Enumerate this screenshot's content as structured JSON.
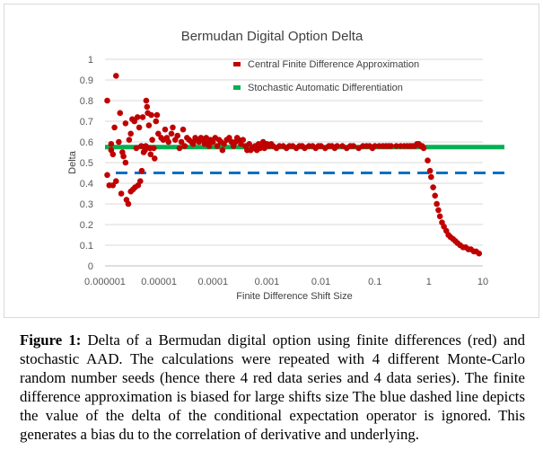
{
  "chart_data": {
    "type": "scatter",
    "title": "Bermudan Digital Option Delta",
    "xlabel": "Finite Difference Shift Size",
    "ylabel": "Delta",
    "x_scale": "log",
    "xlim": [
      1e-06,
      10
    ],
    "ylim": [
      0,
      1
    ],
    "x_tick_labels": [
      "0.000001",
      "0.00001",
      "0.0001",
      "0.001",
      "0.01",
      "0.1",
      "1",
      "10"
    ],
    "y_tick_labels": [
      "0",
      "0.1",
      "0.2",
      "0.3",
      "0.4",
      "0.5",
      "0.6",
      "0.7",
      "0.8",
      "0.9",
      "1"
    ],
    "grid": "horizontal",
    "legend": "top-right",
    "series": [
      {
        "name": "Central Finite Difference Approximation",
        "kind": "scatter",
        "color": "#c00000",
        "points": [
          [
            1.1e-06,
            0.8
          ],
          [
            1.1e-06,
            0.44
          ],
          [
            1.2e-06,
            0.39
          ],
          [
            1.3e-06,
            0.59
          ],
          [
            1.3e-06,
            0.56
          ],
          [
            1.4e-06,
            0.54
          ],
          [
            1.4e-06,
            0.39
          ],
          [
            1.5e-06,
            0.67
          ],
          [
            1.6e-06,
            0.92
          ],
          [
            1.6e-06,
            0.41
          ],
          [
            1.8e-06,
            0.6
          ],
          [
            1.9e-06,
            0.74
          ],
          [
            2e-06,
            0.35
          ],
          [
            2.1e-06,
            0.55
          ],
          [
            2.2e-06,
            0.53
          ],
          [
            2.4e-06,
            0.69
          ],
          [
            2.4e-06,
            0.5
          ],
          [
            2.5e-06,
            0.32
          ],
          [
            2.7e-06,
            0.3
          ],
          [
            2.8e-06,
            0.61
          ],
          [
            3e-06,
            0.64
          ],
          [
            3e-06,
            0.36
          ],
          [
            3.2e-06,
            0.71
          ],
          [
            3.3e-06,
            0.37
          ],
          [
            3.5e-06,
            0.7
          ],
          [
            3.6e-06,
            0.38
          ],
          [
            3.8e-06,
            0.57
          ],
          [
            4e-06,
            0.72
          ],
          [
            4.1e-06,
            0.39
          ],
          [
            4.3e-06,
            0.67
          ],
          [
            4.5e-06,
            0.41
          ],
          [
            4.7e-06,
            0.58
          ],
          [
            4.8e-06,
            0.46
          ],
          [
            5e-06,
            0.72
          ],
          [
            5.2e-06,
            0.55
          ],
          [
            5.5e-06,
            0.56
          ],
          [
            5.7e-06,
            0.58
          ],
          [
            5.8e-06,
            0.8
          ],
          [
            6e-06,
            0.77
          ],
          [
            6.2e-06,
            0.74
          ],
          [
            6.5e-06,
            0.68
          ],
          [
            6.8e-06,
            0.57
          ],
          [
            7e-06,
            0.54
          ],
          [
            7.2e-06,
            0.73
          ],
          [
            7.5e-06,
            0.61
          ],
          [
            8e-06,
            0.57
          ],
          [
            8.3e-06,
            0.52
          ],
          [
            8.8e-06,
            0.7
          ],
          [
            9.2e-06,
            0.73
          ],
          [
            9.7e-06,
            0.64
          ],
          [
            1.1e-05,
            0.62
          ],
          [
            1.2e-05,
            0.61
          ],
          [
            1.3e-05,
            0.66
          ],
          [
            1.4e-05,
            0.62
          ],
          [
            1.5e-05,
            0.6
          ],
          [
            1.7e-05,
            0.64
          ],
          [
            1.8e-05,
            0.67
          ],
          [
            2e-05,
            0.61
          ],
          [
            2.2e-05,
            0.63
          ],
          [
            2.4e-05,
            0.57
          ],
          [
            2.6e-05,
            0.6
          ],
          [
            2.8e-05,
            0.66
          ],
          [
            3e-05,
            0.58
          ],
          [
            3.3e-05,
            0.62
          ],
          [
            3.6e-05,
            0.61
          ],
          [
            4e-05,
            0.6
          ],
          [
            4.3e-05,
            0.59
          ],
          [
            4.7e-05,
            0.62
          ],
          [
            5e-05,
            0.61
          ],
          [
            5.5e-05,
            0.6
          ],
          [
            6e-05,
            0.62
          ],
          [
            6.5e-05,
            0.61
          ],
          [
            7e-05,
            0.59
          ],
          [
            7.5e-05,
            0.62
          ],
          [
            8e-05,
            0.6
          ],
          [
            8.5e-05,
            0.58
          ],
          [
            9e-05,
            0.61
          ],
          [
            0.0001,
            0.6
          ],
          [
            0.00011,
            0.62
          ],
          [
            0.00012,
            0.58
          ],
          [
            0.00013,
            0.61
          ],
          [
            0.00014,
            0.6
          ],
          [
            0.00015,
            0.56
          ],
          [
            0.00016,
            0.59
          ],
          [
            0.00018,
            0.61
          ],
          [
            0.0002,
            0.62
          ],
          [
            0.00022,
            0.6
          ],
          [
            0.00024,
            0.58
          ],
          [
            0.00026,
            0.6
          ],
          [
            0.00028,
            0.62
          ],
          [
            0.0003,
            0.61
          ],
          [
            0.00033,
            0.59
          ],
          [
            0.00036,
            0.61
          ],
          [
            0.0004,
            0.58
          ],
          [
            0.00043,
            0.56
          ],
          [
            0.00047,
            0.59
          ],
          [
            0.0005,
            0.56
          ],
          [
            0.00055,
            0.57
          ],
          [
            0.0006,
            0.58
          ],
          [
            0.00065,
            0.56
          ],
          [
            0.0007,
            0.59
          ],
          [
            0.00075,
            0.57
          ],
          [
            0.0008,
            0.58
          ],
          [
            0.00085,
            0.6
          ],
          [
            0.0009,
            0.57
          ],
          [
            0.001,
            0.59
          ],
          [
            0.0011,
            0.58
          ],
          [
            0.0012,
            0.59
          ],
          [
            0.0013,
            0.58
          ],
          [
            0.0015,
            0.57
          ],
          [
            0.0017,
            0.58
          ],
          [
            0.002,
            0.58
          ],
          [
            0.0023,
            0.57
          ],
          [
            0.0026,
            0.58
          ],
          [
            0.003,
            0.58
          ],
          [
            0.0035,
            0.57
          ],
          [
            0.004,
            0.58
          ],
          [
            0.0045,
            0.58
          ],
          [
            0.005,
            0.57
          ],
          [
            0.006,
            0.58
          ],
          [
            0.007,
            0.58
          ],
          [
            0.008,
            0.57
          ],
          [
            0.009,
            0.58
          ],
          [
            0.01,
            0.58
          ],
          [
            0.012,
            0.57
          ],
          [
            0.014,
            0.58
          ],
          [
            0.016,
            0.58
          ],
          [
            0.018,
            0.57
          ],
          [
            0.02,
            0.58
          ],
          [
            0.025,
            0.58
          ],
          [
            0.03,
            0.57
          ],
          [
            0.035,
            0.58
          ],
          [
            0.04,
            0.58
          ],
          [
            0.05,
            0.57
          ],
          [
            0.06,
            0.58
          ],
          [
            0.07,
            0.58
          ],
          [
            0.08,
            0.58
          ],
          [
            0.09,
            0.57
          ],
          [
            0.1,
            0.58
          ],
          [
            0.12,
            0.58
          ],
          [
            0.14,
            0.58
          ],
          [
            0.16,
            0.58
          ],
          [
            0.18,
            0.58
          ],
          [
            0.2,
            0.58
          ],
          [
            0.25,
            0.58
          ],
          [
            0.3,
            0.58
          ],
          [
            0.35,
            0.58
          ],
          [
            0.4,
            0.58
          ],
          [
            0.45,
            0.58
          ],
          [
            0.5,
            0.58
          ],
          [
            0.55,
            0.58
          ],
          [
            0.6,
            0.59
          ],
          [
            0.65,
            0.59
          ],
          [
            0.7,
            0.58
          ],
          [
            0.75,
            0.58
          ],
          [
            0.8,
            0.57
          ],
          [
            0.95,
            0.51
          ],
          [
            1.05,
            0.46
          ],
          [
            1.1,
            0.43
          ],
          [
            1.2,
            0.38
          ],
          [
            1.3,
            0.34
          ],
          [
            1.4,
            0.3
          ],
          [
            1.5,
            0.27
          ],
          [
            1.6,
            0.24
          ],
          [
            1.75,
            0.21
          ],
          [
            1.9,
            0.19
          ],
          [
            2.1,
            0.17
          ],
          [
            2.3,
            0.15
          ],
          [
            2.5,
            0.14
          ],
          [
            2.8,
            0.13
          ],
          [
            3.1,
            0.12
          ],
          [
            3.4,
            0.11
          ],
          [
            3.8,
            0.1
          ],
          [
            4.3,
            0.09
          ],
          [
            4.8,
            0.09
          ],
          [
            5.4,
            0.08
          ],
          [
            6.0,
            0.08
          ],
          [
            6.8,
            0.07
          ],
          [
            7.5,
            0.07
          ],
          [
            8.5,
            0.06
          ]
        ]
      },
      {
        "name": "Stochastic Automatic Differentiation",
        "kind": "line",
        "color": "#00b050",
        "y": 0.575,
        "x_range": [
          1e-06,
          10
        ]
      },
      {
        "kind": "dashed-line",
        "color": "#0070c0",
        "y": 0.45,
        "x_range": [
          1e-06,
          10
        ]
      }
    ]
  },
  "caption": {
    "label": "Figure 1:",
    "text": "Delta of a Bermudan digital option using finite differences (red) and stochastic AAD. The calculations were repeated with 4 different Monte-Carlo random number seeds (hence there 4 red data series and 4 data series). The finite difference approximation is biased for large shifts size The blue dashed line depicts the value of the delta of the conditional expectation operator is ignored. This generates a bias du to the correlation of derivative and underlying."
  }
}
